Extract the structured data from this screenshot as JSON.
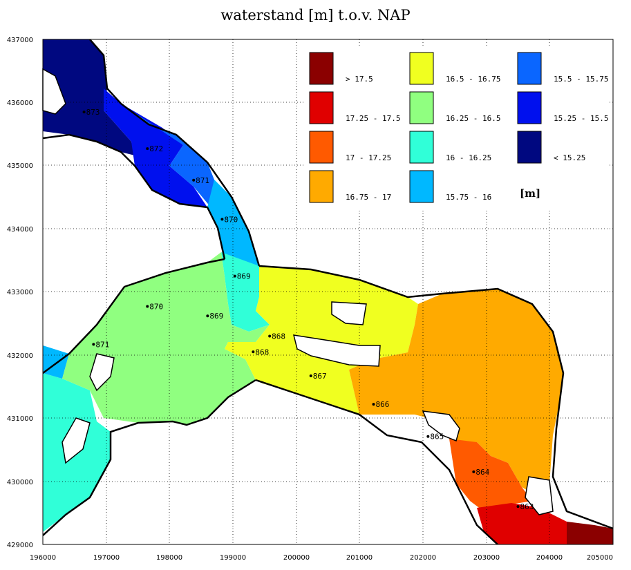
{
  "title": "waterstand [m] t.o.v. NAP",
  "x_axis": {
    "ticks": [
      "196000",
      "197000",
      "198000",
      "199000",
      "200000",
      "201000",
      "202000",
      "203000",
      "204000",
      "205000"
    ]
  },
  "y_axis": {
    "ticks": [
      "437000",
      "436000",
      "435000",
      "434000",
      "433000",
      "432000",
      "431000",
      "430000",
      "429000"
    ]
  },
  "legend": {
    "unit": "[m]",
    "items": [
      {
        "label": "> 17.5",
        "color": "#8b0000"
      },
      {
        "label": "17.25 - 17.5",
        "color": "#e00000"
      },
      {
        "label": "17 - 17.25",
        "color": "#ff5a00"
      },
      {
        "label": "16.75 - 17",
        "color": "#ffaa00"
      },
      {
        "label": "16.5 - 16.75",
        "color": "#f0ff20"
      },
      {
        "label": "16.25 - 16.5",
        "color": "#90ff80"
      },
      {
        "label": "16 - 16.25",
        "color": "#30ffd8"
      },
      {
        "label": "15.75 - 16",
        "color": "#00b8ff"
      },
      {
        "label": "15.5 - 15.75",
        "color": "#0a66ff"
      },
      {
        "label": "15.25 - 15.5",
        "color": "#0010ee"
      },
      {
        "label": "< 15.25",
        "color": "#000880"
      }
    ]
  },
  "stations": [
    {
      "label": "873",
      "x": 196650,
      "y": 435850
    },
    {
      "label": "872",
      "x": 197650,
      "y": 435270
    },
    {
      "label": "871",
      "x": 198380,
      "y": 434770
    },
    {
      "label": "870",
      "x": 198830,
      "y": 434150
    },
    {
      "label": "869",
      "x": 199030,
      "y": 433250
    },
    {
      "label": "870",
      "x": 197650,
      "y": 432770
    },
    {
      "label": "869",
      "x": 198600,
      "y": 432620
    },
    {
      "label": "871",
      "x": 196800,
      "y": 432170
    },
    {
      "label": "868",
      "x": 199580,
      "y": 432300
    },
    {
      "label": "868",
      "x": 199320,
      "y": 432050
    },
    {
      "label": "867",
      "x": 200230,
      "y": 431670
    },
    {
      "label": "866",
      "x": 201220,
      "y": 431220
    },
    {
      "label": "865",
      "x": 202080,
      "y": 430710
    },
    {
      "label": "864",
      "x": 202800,
      "y": 430150
    },
    {
      "label": "863",
      "x": 203500,
      "y": 429600
    }
  ]
}
